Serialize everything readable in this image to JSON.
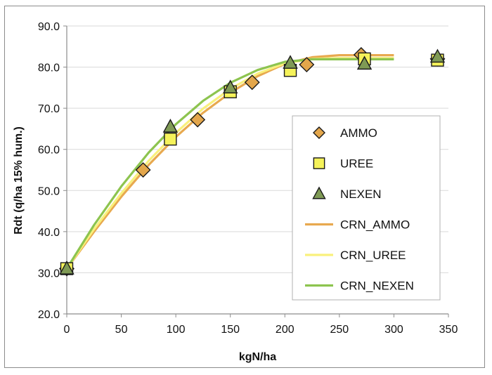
{
  "chart_data": {
    "type": "scatter",
    "title": "",
    "xlabel": "kgN/ha",
    "ylabel": "Rdt (q/ha 15% hum.)",
    "xlim": [
      0,
      350
    ],
    "ylim": [
      20,
      90
    ],
    "x_ticks": [
      "0",
      "50",
      "100",
      "150",
      "200",
      "250",
      "300",
      "350"
    ],
    "y_ticks": [
      "20.0",
      "30.0",
      "40.0",
      "50.0",
      "60.0",
      "70.0",
      "80.0",
      "90.0"
    ],
    "grid": "horizontal",
    "legend_position": "right",
    "series": [
      {
        "name": "AMMO",
        "kind": "points",
        "marker": "diamond",
        "color": "#E3A64B",
        "x": [
          0,
          70,
          120,
          170,
          220,
          270,
          340
        ],
        "y": [
          31.0,
          55.0,
          67.2,
          76.3,
          80.6,
          83.0,
          82.0
        ]
      },
      {
        "name": "UREE",
        "kind": "points",
        "marker": "square",
        "color": "#F5F25A",
        "x": [
          0,
          95,
          150,
          205,
          273,
          340
        ],
        "y": [
          31.0,
          62.5,
          74.0,
          79.2,
          82.0,
          81.7
        ]
      },
      {
        "name": "NEXEN",
        "kind": "points",
        "marker": "triangle",
        "color": "#7F9A55",
        "x": [
          0,
          95,
          150,
          205,
          273,
          340
        ],
        "y": [
          31.0,
          65.5,
          75.0,
          81.0,
          80.8,
          82.5
        ]
      },
      {
        "name": "CRN_AMMO",
        "kind": "line",
        "color": "#E8A94F",
        "x": [
          0,
          25,
          50,
          75,
          100,
          125,
          150,
          175,
          200,
          225,
          250,
          275,
          300
        ],
        "y": [
          31.0,
          40.0,
          48.5,
          56.2,
          63.0,
          68.9,
          73.8,
          77.8,
          80.8,
          82.4,
          82.9,
          82.9,
          82.9
        ]
      },
      {
        "name": "CRN_UREE",
        "kind": "line",
        "color": "#F9F07C",
        "x": [
          0,
          25,
          50,
          75,
          100,
          125,
          150,
          175,
          200,
          225,
          250,
          275,
          300
        ],
        "y": [
          31.0,
          40.6,
          49.3,
          57.2,
          64.0,
          69.9,
          74.7,
          78.4,
          80.9,
          82.0,
          82.2,
          82.2,
          82.2
        ]
      },
      {
        "name": "CRN_NEXEN",
        "kind": "line",
        "color": "#8DC44F",
        "x": [
          0,
          25,
          50,
          75,
          100,
          125,
          150,
          175,
          200,
          225,
          250,
          275,
          300
        ],
        "y": [
          31.0,
          41.6,
          51.0,
          59.2,
          66.1,
          71.8,
          76.2,
          79.3,
          81.3,
          81.9,
          81.9,
          81.9,
          81.9
        ]
      }
    ]
  }
}
